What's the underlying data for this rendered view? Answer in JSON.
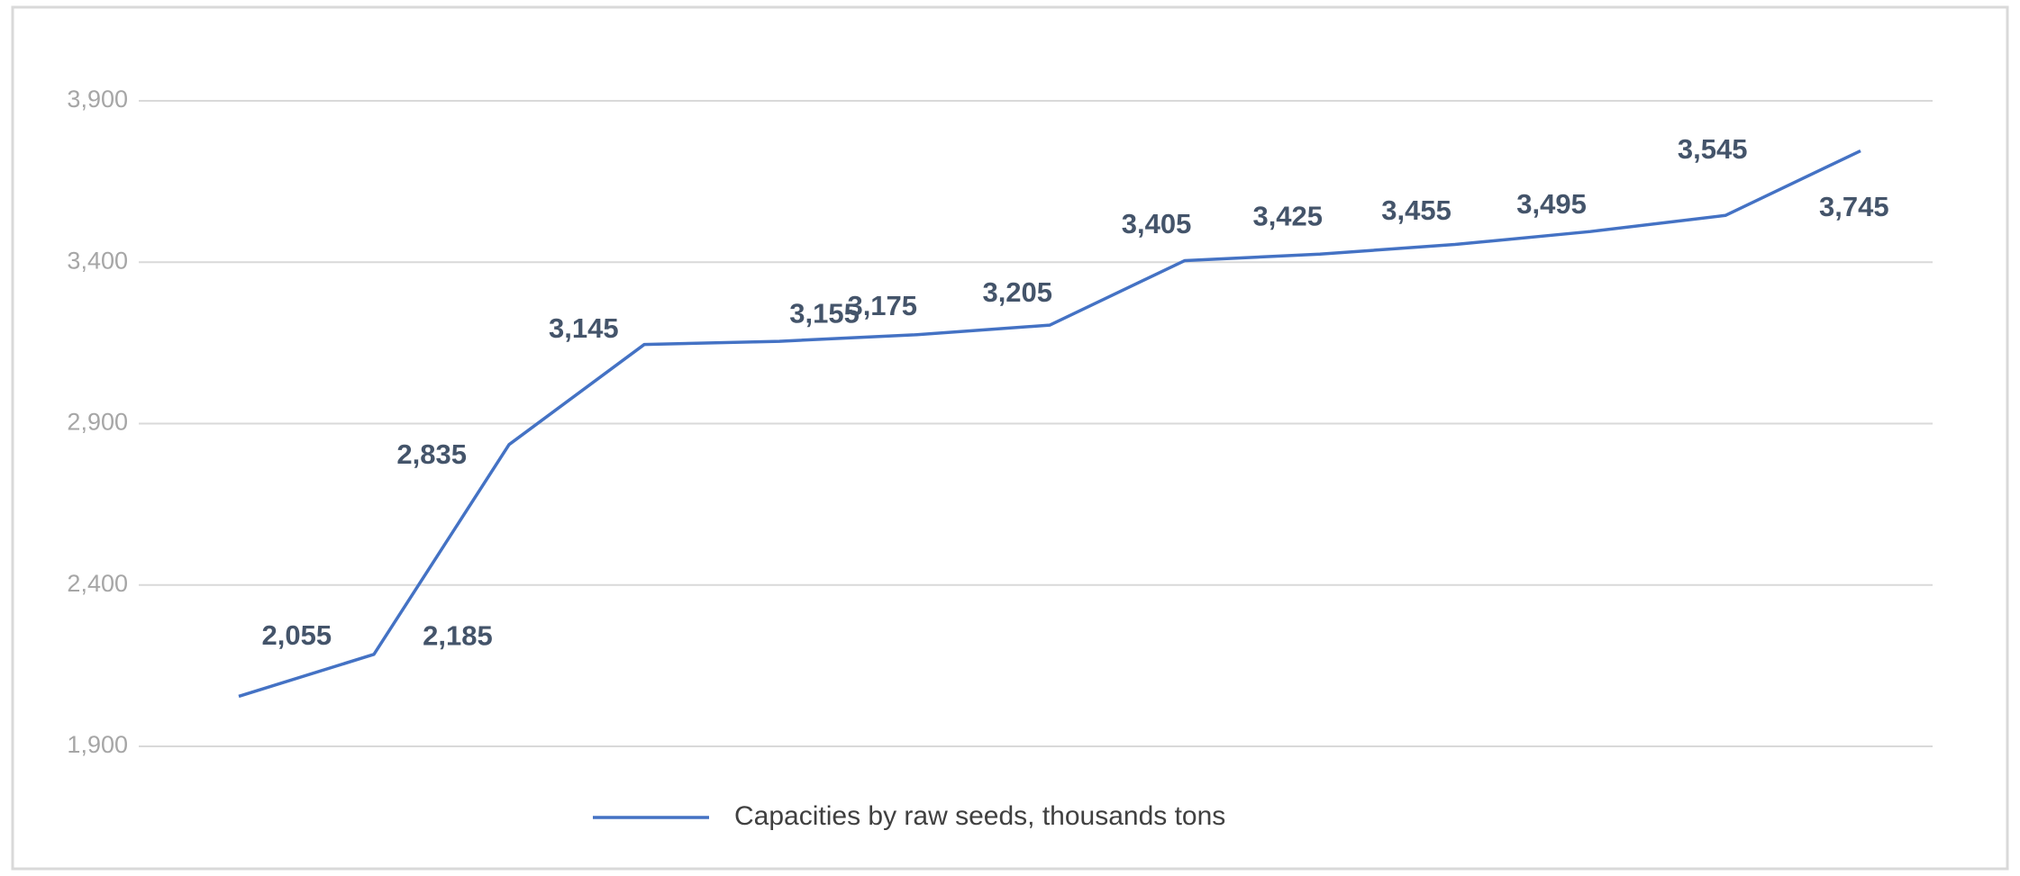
{
  "chart_data": {
    "type": "line",
    "categories": [
      null,
      null,
      null,
      null,
      null,
      null,
      null,
      null,
      null,
      null,
      null,
      null,
      null
    ],
    "series": [
      {
        "name": "Capacities by raw seeds, thousands tons",
        "color": "#4472c4",
        "values": [
          2055,
          2185,
          2835,
          3145,
          3155,
          3175,
          3205,
          3405,
          3425,
          3455,
          3495,
          3545,
          3745
        ],
        "value_labels": [
          "2,055",
          "2,185",
          "2,835",
          "3,145",
          "3,155",
          "3,175",
          "3,205",
          "3,405",
          "3,425",
          "3,455",
          "3,495",
          "3,545",
          "3,745"
        ]
      }
    ],
    "ylim": [
      1900,
      3900
    ],
    "yticks": [
      {
        "value": 1900,
        "label": "1,900"
      },
      {
        "value": 2400,
        "label": "2,400"
      },
      {
        "value": 2900,
        "label": "2,900"
      },
      {
        "value": 3400,
        "label": "3,400"
      },
      {
        "value": 3900,
        "label": "3,900"
      }
    ],
    "grid": true,
    "legend": "bottom"
  }
}
